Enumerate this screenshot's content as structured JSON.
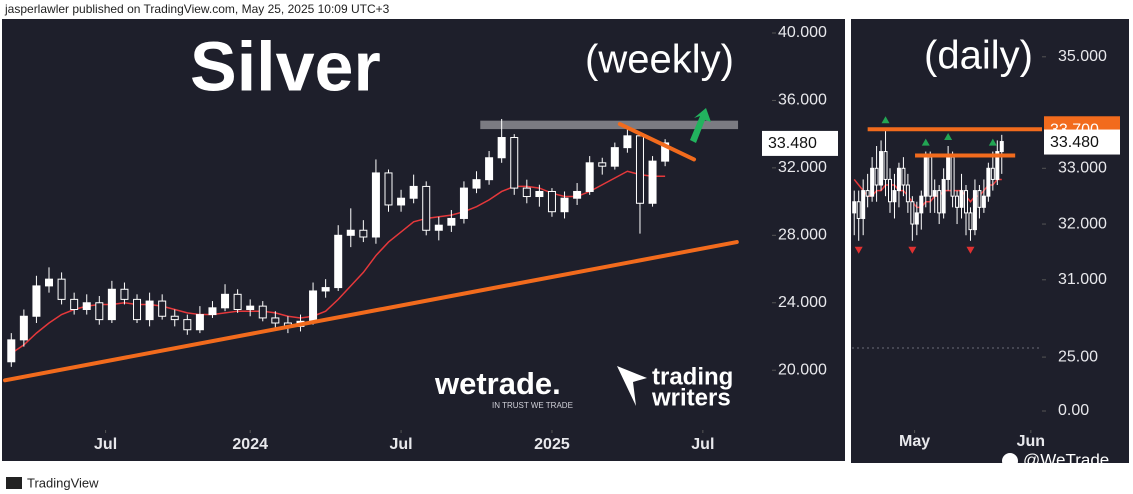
{
  "header": {
    "text": "jasperlawler published on TradingView.com, May 25, 2025 10:09 UTC+3"
  },
  "footer": {
    "brand": "TradingView",
    "credit": "@WeTrade"
  },
  "logos": {
    "wetrade": "wetrade.",
    "wetrade_tagline": "IN TRUST WE TRADE",
    "tw_line1": "trading",
    "tw_line2": "writers"
  },
  "chart_data": [
    {
      "type": "candlestick",
      "title": "Silver",
      "subtitle": "(weekly)",
      "open": [
        20.5,
        21.8,
        23.2,
        25.0,
        25.4,
        24.2,
        23.6,
        24.0,
        23.0,
        24.8,
        24.2,
        23.0,
        24.1,
        23.2,
        23.0,
        22.4,
        23.3,
        23.7,
        24.5,
        23.6,
        23.8,
        23.1,
        22.8,
        22.6,
        22.9,
        24.7,
        24.9,
        28.0,
        28.3,
        27.9,
        31.7,
        29.8,
        30.2,
        30.9,
        28.3,
        28.6,
        29.0,
        30.8,
        31.3,
        32.6,
        33.8,
        30.8,
        30.3,
        30.6,
        29.4,
        30.2,
        30.6,
        32.3,
        32.1,
        33.2,
        33.9,
        29.9,
        32.4
      ],
      "high": [
        22.2,
        23.6,
        25.6,
        26.1,
        25.8,
        24.6,
        24.5,
        24.4,
        25.3,
        25.2,
        24.5,
        24.6,
        24.5,
        23.6,
        23.3,
        23.8,
        24.1,
        25.1,
        24.8,
        24.2,
        24.1,
        23.5,
        23.2,
        23.3,
        25.2,
        25.4,
        28.6,
        29.6,
        28.9,
        32.5,
        31.9,
        30.7,
        31.6,
        31.2,
        29.1,
        29.5,
        31.2,
        31.8,
        33.0,
        34.9,
        34.0,
        31.3,
        31.0,
        30.8,
        30.6,
        31.1,
        32.7,
        32.6,
        33.5,
        34.4,
        34.1,
        32.7,
        33.7
      ],
      "low": [
        20.2,
        21.4,
        22.8,
        24.6,
        23.9,
        23.3,
        23.3,
        22.7,
        22.8,
        23.9,
        22.8,
        22.6,
        23.0,
        22.6,
        22.1,
        22.2,
        23.1,
        23.5,
        23.4,
        23.2,
        22.9,
        22.5,
        22.2,
        22.3,
        22.7,
        24.3,
        24.7,
        27.3,
        27.6,
        27.5,
        29.4,
        29.4,
        29.9,
        28.0,
        27.7,
        28.2,
        28.7,
        30.5,
        31.0,
        32.3,
        30.4,
        29.9,
        29.7,
        29.1,
        29.0,
        29.8,
        30.4,
        31.6,
        31.9,
        32.9,
        28.1,
        29.7,
        32.1
      ],
      "close": [
        21.8,
        23.2,
        25.0,
        25.4,
        24.2,
        23.6,
        24.0,
        23.0,
        24.8,
        24.2,
        23.0,
        24.1,
        23.2,
        23.0,
        22.4,
        23.3,
        23.7,
        24.5,
        23.6,
        23.8,
        23.1,
        22.8,
        22.6,
        22.9,
        24.7,
        24.9,
        28.0,
        28.3,
        27.9,
        31.7,
        29.8,
        30.2,
        30.9,
        28.3,
        28.6,
        29.0,
        30.8,
        31.3,
        32.6,
        33.8,
        30.8,
        30.3,
        30.6,
        29.4,
        30.2,
        30.6,
        32.3,
        32.1,
        33.2,
        33.9,
        29.9,
        32.4,
        33.48
      ],
      "moving_average": {
        "color": "#e5383b",
        "values": [
          21.0,
          21.5,
          22.2,
          22.8,
          23.3,
          23.6,
          23.8,
          23.9,
          23.9,
          24.0,
          23.9,
          23.9,
          23.8,
          23.6,
          23.4,
          23.3,
          23.3,
          23.4,
          23.5,
          23.5,
          23.5,
          23.4,
          23.2,
          23.1,
          23.2,
          23.5,
          24.2,
          25.0,
          25.8,
          26.8,
          27.6,
          28.2,
          28.8,
          29.0,
          29.1,
          29.2,
          29.4,
          29.7,
          30.1,
          30.6,
          30.9,
          30.9,
          30.8,
          30.5,
          30.3,
          30.3,
          30.6,
          31.0,
          31.4,
          31.8,
          31.6,
          31.5,
          31.5
        ]
      },
      "up_color": "#ffffff",
      "down_color": "#1e1f2b",
      "xlim": [
        -0.5,
        60.5
      ],
      "xticks": [
        {
          "value": 7.5,
          "label": "Jul"
        },
        {
          "value": 19,
          "label": "2024"
        },
        {
          "value": 31,
          "label": "Jul"
        },
        {
          "value": 43,
          "label": "2025"
        },
        {
          "value": 55,
          "label": "Jul"
        }
      ],
      "ylim": [
        16.75,
        40.77
      ],
      "yticks": [
        {
          "value": 20,
          "label": "20.000"
        },
        {
          "value": 24,
          "label": "24.000"
        },
        {
          "value": 28,
          "label": "28.000"
        },
        {
          "value": 32,
          "label": "32.000"
        },
        {
          "value": 36,
          "label": "36.000"
        },
        {
          "value": 40,
          "label": "40.000"
        }
      ],
      "grid": false,
      "last_price": {
        "value": 33.48,
        "label": "33.480"
      },
      "resistance_zone": {
        "x": [
          37.3,
          57.8
        ],
        "y": [
          34.3,
          34.8
        ],
        "color": "#8c8c92"
      },
      "trendlines": [
        {
          "color": "#f26b1d",
          "x": [
            -0.5,
            57.7
          ],
          "y": [
            19.4,
            27.6
          ]
        },
        {
          "color": "#f26b1d",
          "x": [
            48.4,
            54.3
          ],
          "y": [
            34.6,
            32.5
          ]
        }
      ]
    },
    {
      "type": "candlestick",
      "subtitle": "(daily)",
      "open": [
        32.2,
        32.4,
        32.1,
        32.6,
        32.5,
        33.0,
        32.7,
        33.3,
        32.8,
        32.4,
        32.6,
        33.0,
        32.7,
        32.4,
        32.0,
        32.2,
        32.5,
        33.2,
        32.5,
        32.6,
        32.2,
        32.8,
        33.2,
        32.5,
        32.3,
        32.6,
        32.2,
        31.9,
        32.6,
        32.3,
        32.5,
        33.0,
        32.8,
        33.3
      ],
      "high": [
        32.6,
        32.6,
        32.8,
        32.9,
        33.2,
        33.4,
        33.5,
        33.7,
        33.0,
        32.9,
        33.1,
        33.2,
        32.9,
        32.5,
        32.4,
        32.6,
        33.3,
        33.3,
        32.8,
        32.7,
        33.0,
        33.4,
        33.3,
        32.6,
        32.9,
        32.7,
        32.3,
        32.8,
        32.7,
        32.8,
        33.1,
        33.3,
        33.5,
        33.6
      ],
      "low": [
        31.8,
        31.7,
        31.8,
        32.3,
        32.4,
        32.4,
        32.6,
        32.5,
        32.2,
        32.1,
        32.3,
        32.5,
        32.2,
        31.7,
        31.8,
        31.9,
        32.3,
        32.2,
        32.2,
        32.0,
        32.1,
        32.6,
        32.3,
        32.0,
        32.1,
        31.8,
        31.7,
        31.8,
        32.1,
        32.2,
        32.4,
        32.6,
        32.7,
        32.9
      ],
      "close": [
        32.4,
        32.1,
        32.6,
        32.5,
        33.0,
        32.7,
        33.3,
        32.8,
        32.4,
        32.6,
        33.0,
        32.7,
        32.4,
        32.0,
        32.2,
        32.5,
        33.2,
        32.5,
        32.6,
        32.2,
        32.8,
        33.2,
        32.5,
        32.3,
        32.6,
        32.2,
        31.9,
        32.6,
        32.3,
        32.5,
        33.0,
        32.8,
        33.3,
        33.48
      ],
      "moving_average": {
        "color": "#e5383b",
        "values": [
          32.8,
          32.7,
          32.6,
          32.5,
          32.5,
          32.6,
          32.6,
          32.7,
          32.7,
          32.7,
          32.6,
          32.6,
          32.5,
          32.4,
          32.3,
          32.3,
          32.4,
          32.4,
          32.5,
          32.5,
          32.6,
          32.6,
          32.6,
          32.6,
          32.6,
          32.5,
          32.4,
          32.5,
          32.5,
          32.6,
          32.7,
          32.7,
          32.8,
          32.8
        ]
      },
      "up_color": "#ffffff",
      "down_color": "#1e1f2b",
      "xlim": [
        -0.5,
        42
      ],
      "xticks": [
        {
          "value": 13.5,
          "label": "May"
        },
        {
          "value": 39.5,
          "label": "Jun"
        }
      ],
      "ylim": [
        29.92,
        35.66
      ],
      "yticks": [
        {
          "value": 31,
          "label": "31.000"
        },
        {
          "value": 32,
          "label": "32.000"
        },
        {
          "value": 33,
          "label": "33.000"
        },
        {
          "value": 35,
          "label": "35.000"
        }
      ],
      "grid": false,
      "last_price": {
        "value": 33.48,
        "label": "33.480"
      },
      "level_label": {
        "value": 33.7,
        "label": "33.700",
        "color": "#f26b1d"
      },
      "levels": [
        {
          "color": "#f26b1d",
          "x": [
            3,
            42
          ],
          "value": 33.7
        },
        {
          "color": "#f26b1d",
          "x": [
            13.6,
            36
          ],
          "value": 33.23
        }
      ],
      "fractal_highs": [
        7,
        16,
        21,
        31
      ],
      "fractal_lows": [
        1,
        13,
        26
      ],
      "lower_pane": {
        "ylim": [
          -20.4,
          30.6
        ],
        "yticks": [
          {
            "value": 25,
            "label": "25.00"
          },
          {
            "value": 0,
            "label": "0.00"
          }
        ]
      }
    }
  ]
}
